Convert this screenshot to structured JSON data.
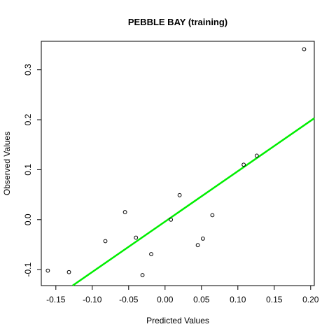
{
  "chart_data": {
    "type": "scatter",
    "title": "PEBBLE BAY (training)",
    "xlabel": "Predicted Values",
    "ylabel": "Observed Values",
    "xlim": [
      -0.17,
      0.205
    ],
    "ylim": [
      -0.132,
      0.357
    ],
    "xticks": [
      -0.15,
      -0.1,
      -0.05,
      0.0,
      0.05,
      0.1,
      0.15,
      0.2
    ],
    "xtick_labels": [
      "-0.15",
      "-0.10",
      "-0.05",
      "0.00",
      "0.05",
      "0.10",
      "0.15",
      "0.20"
    ],
    "yticks": [
      -0.1,
      0.0,
      0.1,
      0.2,
      0.3
    ],
    "ytick_labels": [
      "-0.1",
      "0.0",
      "0.1",
      "0.2",
      "0.3"
    ],
    "grid": false,
    "legend": "none",
    "point_color": "#000000",
    "line_color": "#00ee00",
    "points": [
      {
        "x": -0.161,
        "y": -0.102
      },
      {
        "x": -0.132,
        "y": -0.105
      },
      {
        "x": -0.082,
        "y": -0.043
      },
      {
        "x": -0.055,
        "y": 0.015
      },
      {
        "x": -0.04,
        "y": -0.036
      },
      {
        "x": -0.031,
        "y": -0.111
      },
      {
        "x": -0.019,
        "y": -0.069
      },
      {
        "x": 0.008,
        "y": 0.0
      },
      {
        "x": 0.02,
        "y": 0.049
      },
      {
        "x": 0.045,
        "y": -0.051
      },
      {
        "x": 0.052,
        "y": -0.038
      },
      {
        "x": 0.065,
        "y": 0.009
      },
      {
        "x": 0.108,
        "y": 0.11
      },
      {
        "x": 0.126,
        "y": 0.128
      },
      {
        "x": 0.191,
        "y": 0.341
      }
    ],
    "fit_line": {
      "x": [
        -0.127,
        0.205
      ],
      "y": [
        -0.132,
        0.203
      ]
    }
  }
}
